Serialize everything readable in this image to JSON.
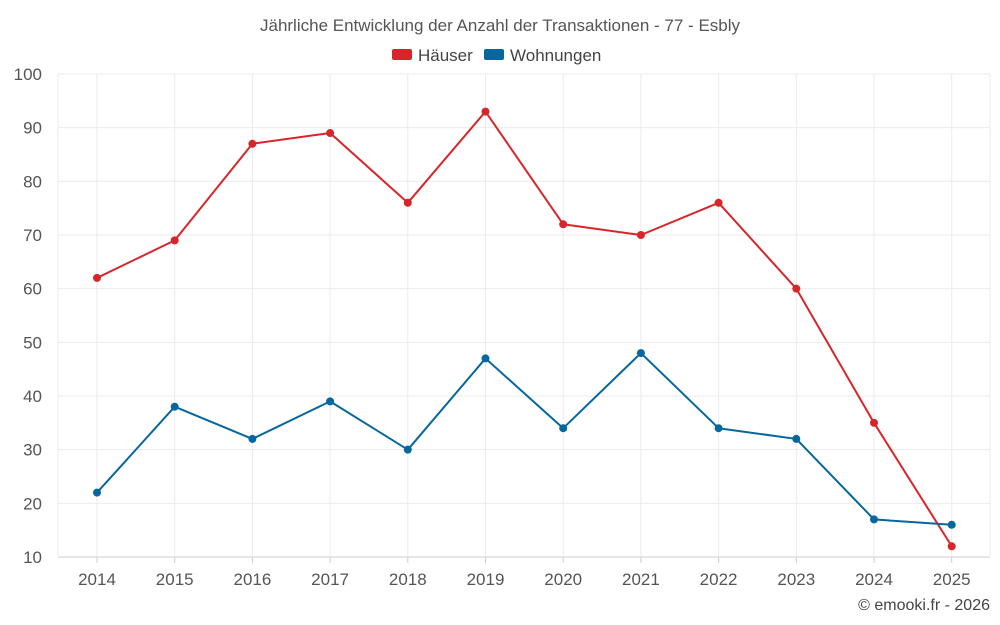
{
  "chart_data": {
    "type": "line",
    "title": "Jährliche Entwicklung der Anzahl der Transaktionen - 77 - Esbly",
    "categories": [
      "2014",
      "2015",
      "2016",
      "2017",
      "2018",
      "2019",
      "2020",
      "2021",
      "2022",
      "2023",
      "2024",
      "2025"
    ],
    "series": [
      {
        "name": "Häuser",
        "color": "#d7262b",
        "values": [
          62,
          69,
          87,
          89,
          76,
          93,
          72,
          70,
          76,
          60,
          35,
          12
        ]
      },
      {
        "name": "Wohnungen",
        "color": "#05679e",
        "values": [
          22,
          38,
          32,
          39,
          30,
          47,
          34,
          48,
          34,
          32,
          17,
          16
        ]
      }
    ],
    "ylim": [
      10,
      100
    ],
    "yticks": [
      10,
      20,
      30,
      40,
      50,
      60,
      70,
      80,
      90,
      100
    ],
    "xlabel": "",
    "ylabel": "",
    "grid": true,
    "legend": "top-center"
  },
  "credit": "© emooki.fr - 2026"
}
